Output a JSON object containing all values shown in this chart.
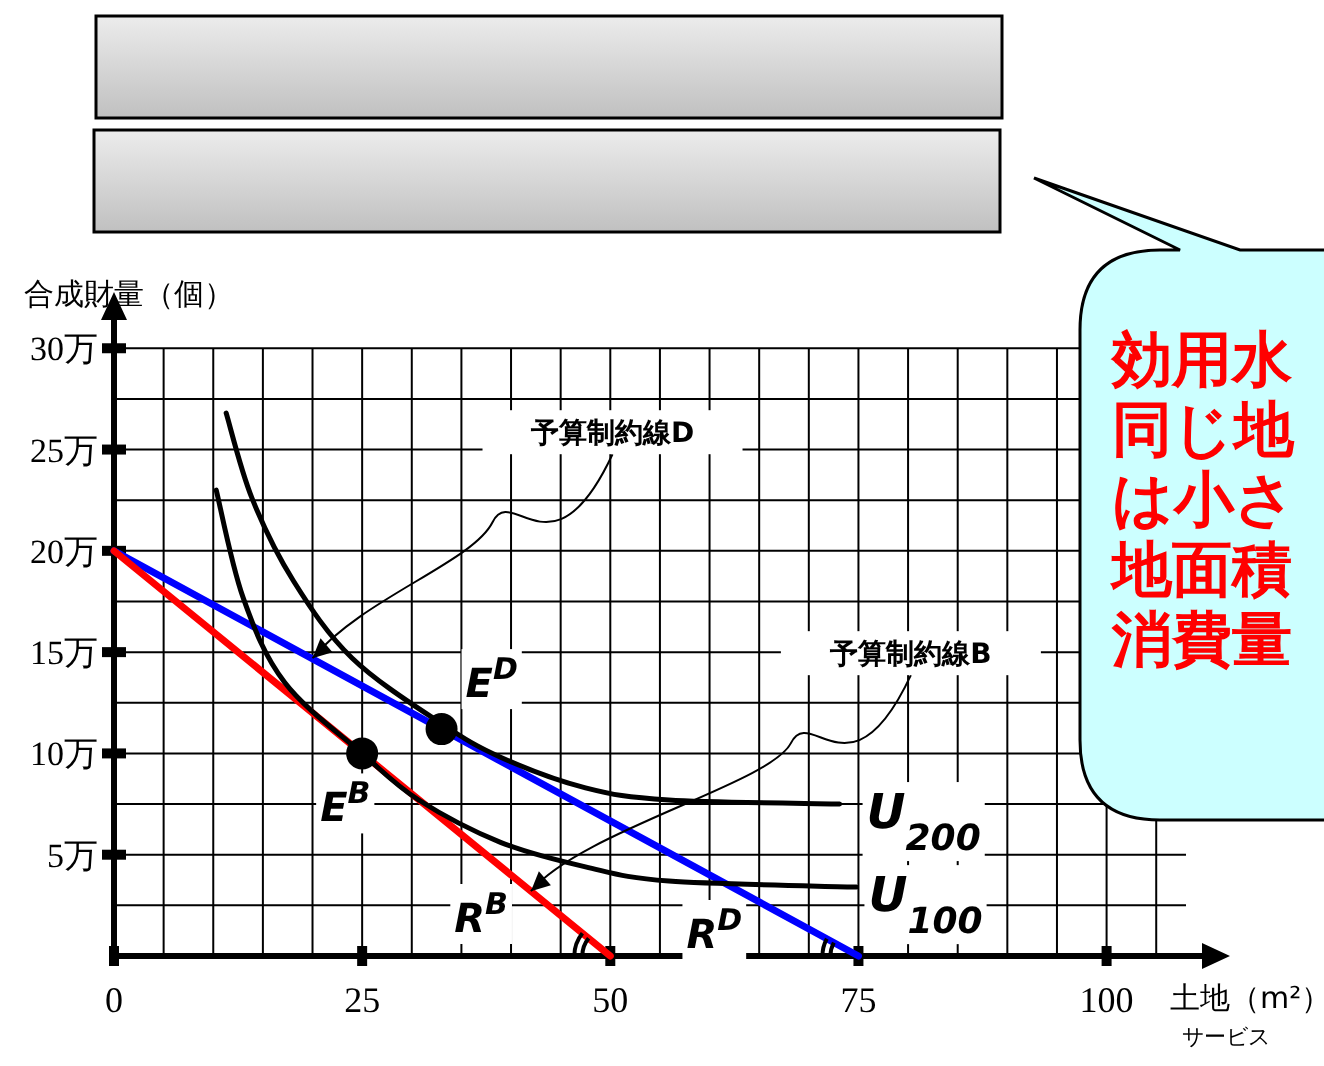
{
  "chart_data": {
    "type": "line",
    "xlabel": "土地（m²）",
    "ylabel": "合成財量（個）",
    "xlim": [
      0,
      108
    ],
    "ylim": [
      0,
      31
    ],
    "xticks": [
      0,
      {
        "value": 5,
        "label": null
      },
      {
        "value": 10,
        "label": null
      },
      {
        "value": 15,
        "label": null
      },
      {
        "value": 20,
        "label": null
      },
      25,
      {
        "value": 30,
        "label": null
      },
      {
        "value": 35,
        "label": null
      },
      {
        "value": 40,
        "label": null
      },
      {
        "value": 45,
        "label": null
      },
      50,
      {
        "value": 55,
        "label": null
      },
      {
        "value": 60,
        "label": null
      },
      {
        "value": 65,
        "label": null
      },
      {
        "value": 70,
        "label": null
      },
      75,
      {
        "value": 80,
        "label": null
      },
      {
        "value": 85,
        "label": null
      },
      {
        "value": 90,
        "label": null
      },
      {
        "value": 95,
        "label": null
      },
      100,
      {
        "value": 105,
        "label": null
      }
    ],
    "yticks": [
      {
        "value": 0,
        "label": null
      },
      {
        "value": 2.5,
        "label": null
      },
      {
        "value": 5,
        "label": "5万"
      },
      {
        "value": 7.5,
        "label": null
      },
      {
        "value": 10,
        "label": "10万"
      },
      {
        "value": 12.5,
        "label": null
      },
      {
        "value": 15,
        "label": "15万"
      },
      {
        "value": 17.5,
        "label": null
      },
      {
        "value": 20,
        "label": "20万"
      },
      {
        "value": 22.5,
        "label": null
      },
      {
        "value": 25,
        "label": "25万"
      },
      {
        "value": 27.5,
        "label": null
      },
      {
        "value": 30,
        "label": "30万"
      }
    ],
    "grid": true,
    "marker": "none",
    "line_style": "solid",
    "series": [
      {
        "color": "#0000ff",
        "x": [
          0,
          75
        ],
        "values": [
          20,
          0
        ]
      },
      {
        "color": "#ff0000",
        "x": [
          0,
          50
        ],
        "values": [
          20,
          0
        ]
      },
      {
        "color": "#000000",
        "x": [
          11.3,
          13.9,
          18.1,
          24,
          32.9,
          39,
          47.5,
          55.9,
          73.1
        ],
        "values": [
          26.8,
          22.6,
          18.5,
          14.7,
          11.5,
          9.8,
          8.3,
          7.7,
          7.5
        ]
      },
      {
        "color": "#000000",
        "x": [
          10.3,
          13,
          17.2,
          25,
          30.7,
          39,
          47.5,
          55.9,
          74.8
        ],
        "values": [
          23,
          17.7,
          13.5,
          10,
          7.7,
          5.6,
          4.4,
          3.7,
          3.4
        ]
      },
      {
        "type": "scatter",
        "marker": "circle",
        "color": "#000000",
        "x": [
          33,
          25
        ],
        "values": [
          11.2,
          10
        ]
      }
    ],
    "annotations": [
      {
        "text": "予算制約線D",
        "x": 20,
        "y": 14.7
      },
      {
        "text": "予算制約線B",
        "x": 42,
        "y": 3.2
      },
      {
        "text": "U$_{200}$",
        "x": 73,
        "y": 7.5
      },
      {
        "text": "U$_{100}$",
        "x": 75,
        "y": 3.4
      },
      {
        "text": "E$^{D}$",
        "x": 33,
        "y": 11.2
      },
      {
        "text": "E$^{B}$",
        "x": 25,
        "y": 10
      },
      {
        "text": "R$^{B}$",
        "x": 50,
        "y": 0
      },
      {
        "text": "R$^{D}$",
        "x": 75,
        "y": 0
      },
      "効用水",
      "同じ地",
      "は小さ",
      "地面積",
      "消費量",
      "サービス"
    ]
  }
}
